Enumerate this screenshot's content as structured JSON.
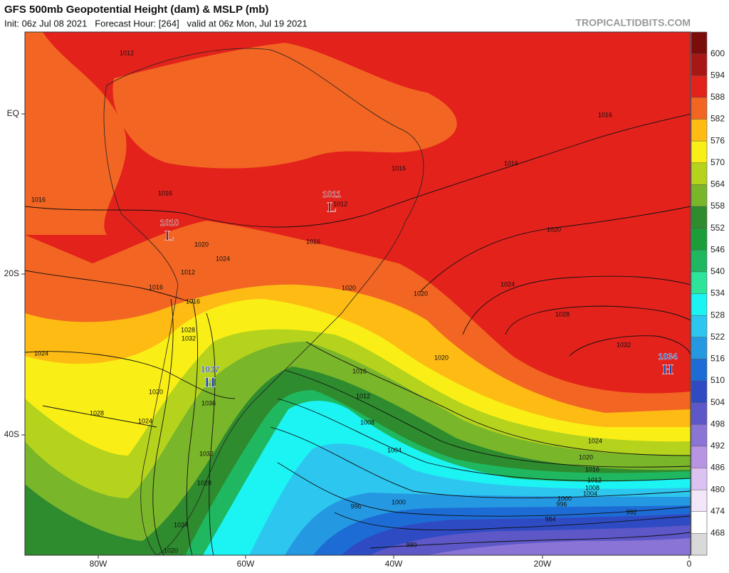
{
  "header": {
    "title": "GFS 500mb Geopotential Height (dam) & MSLP (mb)",
    "subtitle": "Init: 06z Jul 08 2021   Forecast Hour: [264]   valid at 06z Mon, Jul 19 2021",
    "brand": "TROPICALTIDBITS.COM"
  },
  "map": {
    "x_labels": [
      "80W",
      "60W",
      "40W",
      "20W",
      "0"
    ],
    "y_labels": [
      "EQ",
      "20S",
      "40S"
    ],
    "isobar_labels": [
      1012,
      1016,
      1016,
      1016,
      1016,
      1016,
      1012,
      1020,
      1020,
      1024,
      1016,
      1012,
      1016,
      1024,
      1020,
      1020,
      1016,
      1028,
      1028,
      1032,
      1032,
      1024,
      1020,
      1016,
      1020,
      1036,
      1012,
      1028,
      1024,
      1008,
      1004,
      1024,
      1032,
      1020,
      1016,
      1012,
      1008,
      1028,
      1004,
      1000,
      996,
      1000,
      996,
      992,
      984,
      1024,
      980,
      1020
    ],
    "pressure_centers": [
      {
        "value": 1037,
        "letter": "H"
      },
      {
        "value": 1034,
        "letter": "H"
      },
      {
        "value": 1010,
        "letter": "L"
      },
      {
        "value": 1011,
        "letter": "L"
      }
    ]
  },
  "colorbar": {
    "levels": [
      600,
      594,
      588,
      582,
      576,
      570,
      564,
      558,
      552,
      546,
      540,
      534,
      528,
      522,
      516,
      510,
      504,
      498,
      492,
      486,
      480,
      474,
      468
    ],
    "colors": [
      "#7a0c0c",
      "#a81616",
      "#e3221c",
      "#f26522",
      "#fdbb13",
      "#f9ef17",
      "#b5d31c",
      "#7ab62a",
      "#2e8b2e",
      "#1b9e3a",
      "#1fb861",
      "#2ee39a",
      "#1cf3f3",
      "#2dc6ef",
      "#2598e2",
      "#1d6cd6",
      "#2f4bc4",
      "#5d57c7",
      "#8a74d6",
      "#b795e3",
      "#dcc2f0",
      "#f2e6f8",
      "#ffffff",
      "#d9d9d9"
    ]
  }
}
